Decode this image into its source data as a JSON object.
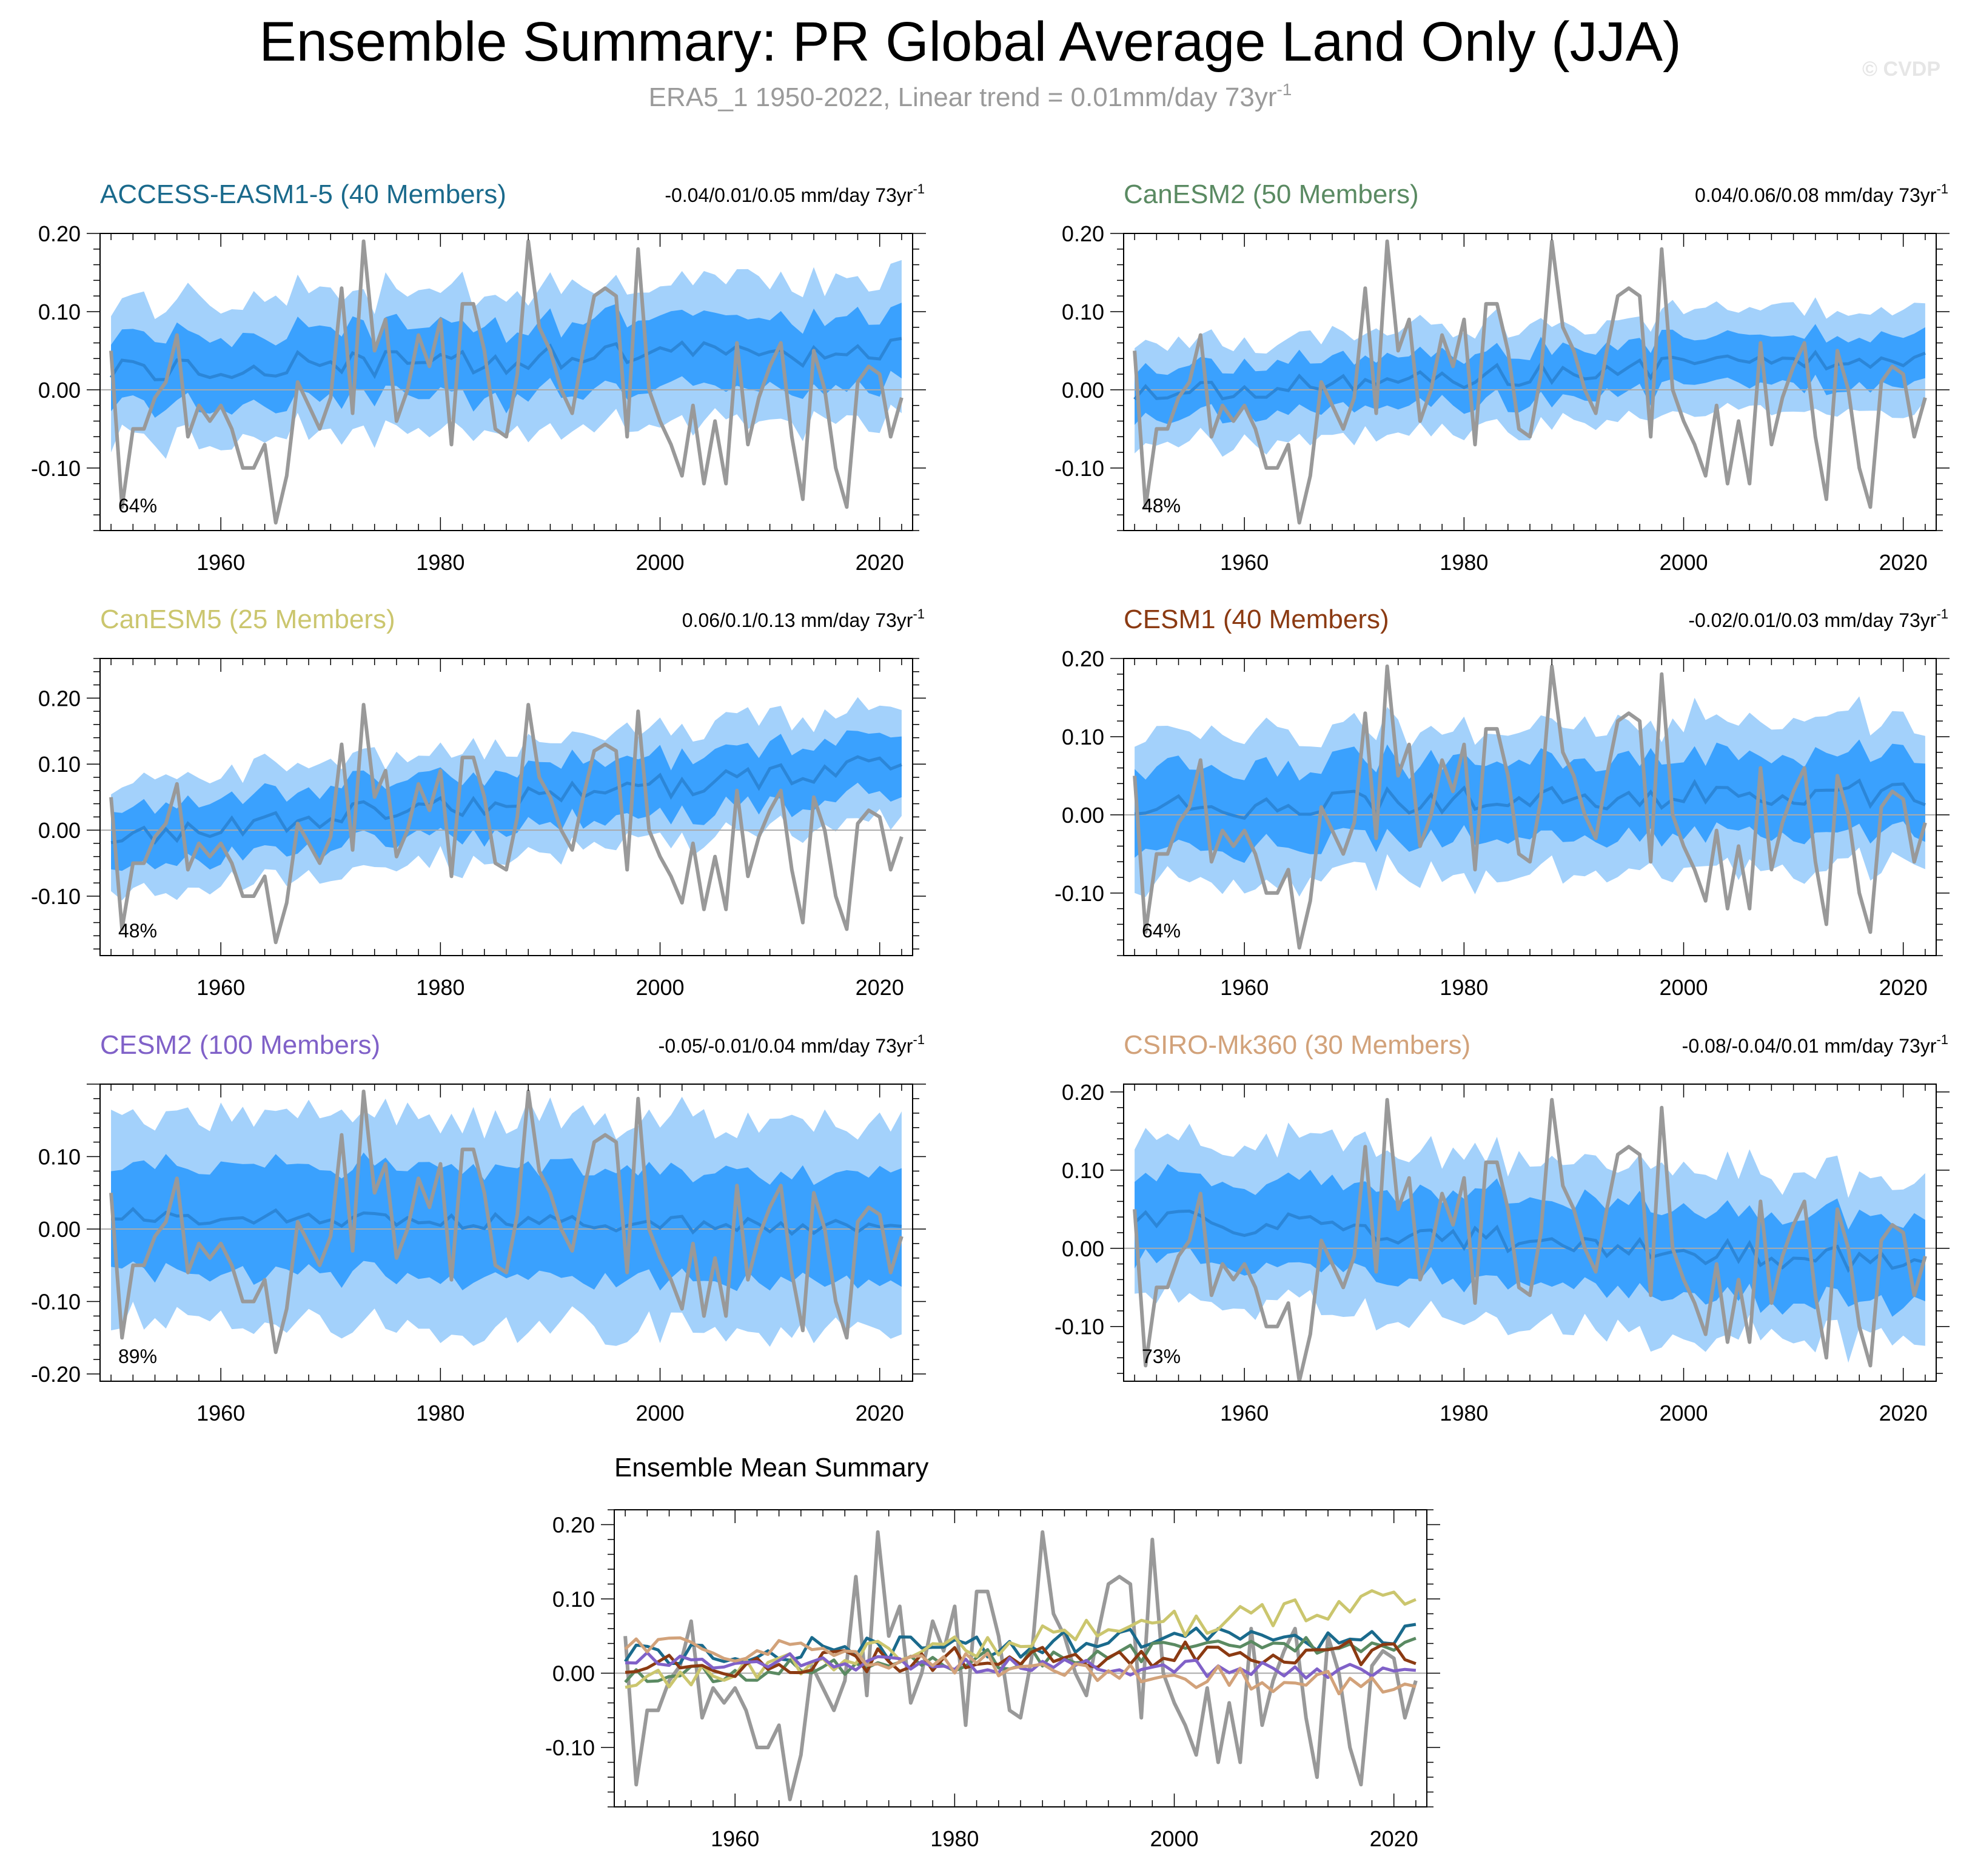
{
  "title": "Ensemble Summary: PR Global Average Land Only (JJA)",
  "subtitle": {
    "text": "ERA5_1 1950-2022, Linear trend = 0.01mm/day 73yr",
    "superscript": "-1"
  },
  "copyright": "© CVDP",
  "trend_units": "mm/day 73yr",
  "trend_superscript": "-1",
  "colors": {
    "band_outer": "#a3d1fb",
    "band_inner": "#3aa1fe",
    "ens_mean": "#2b86d8",
    "observed": "#999999",
    "zero_line": "#aaaaaa"
  },
  "chart_data": [
    {
      "type": "line",
      "title": "ACCESS-EASM1-5 (40 Members)",
      "color": "#1a6a8c",
      "trend": "-0.04/0.01/0.05",
      "percent": "64%",
      "xlim": [
        1949,
        2023
      ],
      "ylim": [
        -0.18,
        0.2
      ],
      "yticks": [
        -0.1,
        0.0,
        0.1,
        0.2
      ],
      "ytick_labels": [
        "-0.10",
        "0.00",
        "0.10",
        "0.20"
      ],
      "xticks": [
        1960,
        1980,
        2000,
        2020
      ],
      "mean_start": 0.025,
      "mean_end": 0.05,
      "inner_half": 0.045,
      "outer_half": 0.09,
      "wig": 0.018,
      "seed": 11
    },
    {
      "type": "line",
      "title": "CanESM2 (50 Members)",
      "color": "#5a8a62",
      "trend": "0.04/0.06/0.08",
      "percent": "48%",
      "xlim": [
        1949,
        2023
      ],
      "ylim": [
        -0.18,
        0.2
      ],
      "yticks": [
        -0.1,
        0.0,
        0.1,
        0.2
      ],
      "ytick_labels": [
        "-0.10",
        "0.00",
        "0.10",
        "0.20"
      ],
      "xticks": [
        1960,
        1980,
        2000,
        2020
      ],
      "mean_start": -0.005,
      "mean_end": 0.045,
      "inner_half": 0.032,
      "outer_half": 0.065,
      "wig": 0.014,
      "seed": 23
    },
    {
      "type": "line",
      "title": "CanESM5 (25 Members)",
      "color": "#cbc66e",
      "trend": "0.06/0.1/0.13",
      "percent": "48%",
      "xlim": [
        1949,
        2023
      ],
      "ylim": [
        -0.19,
        0.26
      ],
      "yticks": [
        -0.1,
        0.0,
        0.1,
        0.2
      ],
      "ytick_labels": [
        "-0.10",
        "0.00",
        "0.10",
        "0.20"
      ],
      "xticks": [
        1960,
        1980,
        2000,
        2020
      ],
      "mean_start": -0.01,
      "mean_end": 0.1,
      "inner_half": 0.045,
      "outer_half": 0.085,
      "wig": 0.018,
      "seed": 37
    },
    {
      "type": "line",
      "title": "CESM1 (40 Members)",
      "color": "#8b3a12",
      "trend": "-0.02/0.01/0.03",
      "percent": "64%",
      "xlim": [
        1949,
        2023
      ],
      "ylim": [
        -0.18,
        0.2
      ],
      "yticks": [
        -0.1,
        0.0,
        0.1,
        0.2
      ],
      "ytick_labels": [
        "-0.10",
        "0.00",
        "0.10",
        "0.20"
      ],
      "xticks": [
        1960,
        1980,
        2000,
        2020
      ],
      "mean_start": 0.01,
      "mean_end": 0.03,
      "inner_half": 0.05,
      "outer_half": 0.095,
      "wig": 0.018,
      "seed": 41
    },
    {
      "type": "line",
      "title": "CESM2 (100 Members)",
      "color": "#8061c8",
      "trend": "-0.05/-0.01/0.04",
      "percent": "89%",
      "xlim": [
        1949,
        2023
      ],
      "ylim": [
        -0.21,
        0.2
      ],
      "yticks": [
        -0.2,
        -0.1,
        0.0,
        0.1
      ],
      "ytick_labels": [
        "-0.20",
        "-0.10",
        "0.00",
        "0.10"
      ],
      "xticks": [
        1960,
        1980,
        2000,
        2020
      ],
      "mean_start": 0.02,
      "mean_end": 0.0,
      "inner_half": 0.075,
      "outer_half": 0.145,
      "wig": 0.012,
      "seed": 53
    },
    {
      "type": "line",
      "title": "CSIRO-Mk360 (30 Members)",
      "color": "#d2a27a",
      "trend": "-0.08/-0.04/0.01",
      "percent": "73%",
      "xlim": [
        1949,
        2023
      ],
      "ylim": [
        -0.17,
        0.21
      ],
      "yticks": [
        -0.1,
        0.0,
        0.1,
        0.2
      ],
      "ytick_labels": [
        "-0.10",
        "0.00",
        "0.10",
        "0.20"
      ],
      "xticks": [
        1960,
        1980,
        2000,
        2020
      ],
      "mean_start": 0.04,
      "mean_end": -0.02,
      "inner_half": 0.055,
      "outer_half": 0.105,
      "wig": 0.016,
      "seed": 67
    }
  ],
  "summary_chart": {
    "type": "line",
    "title": "Ensemble Mean Summary",
    "xlim": [
      1949,
      2023
    ],
    "ylim": [
      -0.18,
      0.22
    ],
    "yticks": [
      -0.1,
      0.0,
      0.1,
      0.2
    ],
    "ytick_labels": [
      "-0.10",
      "0.00",
      "0.10",
      "0.20"
    ],
    "xticks": [
      1960,
      1980,
      2000,
      2020
    ],
    "series_colors": [
      "#1a6a8c",
      "#5a8a62",
      "#cbc66e",
      "#8b3a12",
      "#8061c8",
      "#d2a27a"
    ]
  },
  "observed": {
    "name": "ERA5_1",
    "years": [
      1950,
      2022
    ],
    "values": [
      0.05,
      -0.15,
      -0.05,
      -0.05,
      -0.01,
      0.01,
      0.07,
      -0.06,
      -0.02,
      -0.04,
      -0.02,
      -0.05,
      -0.1,
      -0.1,
      -0.07,
      -0.17,
      -0.11,
      0.01,
      -0.02,
      -0.05,
      -0.01,
      0.13,
      -0.03,
      0.19,
      0.05,
      0.09,
      -0.04,
      0.0,
      0.07,
      0.03,
      0.09,
      -0.07,
      0.11,
      0.11,
      0.05,
      -0.05,
      -0.06,
      0.02,
      0.19,
      0.08,
      0.05,
      0.0,
      -0.03,
      0.05,
      0.12,
      0.13,
      0.12,
      -0.06,
      0.18,
      0.0,
      -0.04,
      -0.07,
      -0.11,
      -0.02,
      -0.12,
      -0.04,
      -0.12,
      0.06,
      -0.07,
      -0.01,
      0.03,
      0.06,
      -0.06,
      -0.14,
      0.05,
      0.0,
      -0.1,
      -0.15,
      0.01,
      0.03,
      0.02,
      -0.06,
      -0.01
    ]
  }
}
